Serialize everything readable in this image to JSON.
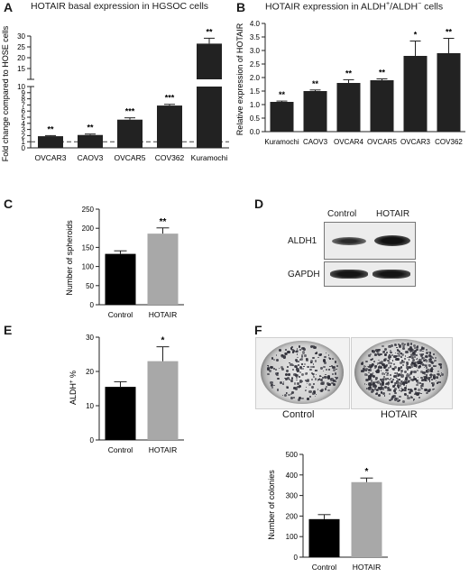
{
  "panels": {
    "A": {
      "letter": "A",
      "title": "HOTAIR basal expression in HGSOC cells",
      "ylabel": "Fold change compared to HOSE cells",
      "dashed_reference": 1,
      "lower_ticks": [
        "0",
        "1",
        "2",
        "3",
        "4",
        "5",
        "6",
        "7",
        "8",
        "9",
        "10"
      ],
      "upper_ticks": [
        "15",
        "20",
        "25",
        "30"
      ]
    },
    "B": {
      "letter": "B",
      "title": "HOTAIR expression in ALDH",
      "title_sup1": "+",
      "title_mid": "/ALDH",
      "title_sup2": "−",
      "title_end": "cells",
      "ylabel": "Relative expression of HOTAIR",
      "ticks": [
        "0.0",
        "0.5",
        "1.0",
        "1.5",
        "2.0",
        "2.5",
        "3.0",
        "3.5",
        "4.0"
      ]
    },
    "C": {
      "letter": "C",
      "ylabel": "Number of spheroids",
      "ticks": [
        "0",
        "50",
        "100",
        "150",
        "200",
        "250"
      ]
    },
    "D": {
      "letter": "D",
      "col_control": "Control",
      "col_hotair": "HOTAIR",
      "row_aldh1": "ALDH1",
      "row_gapdh": "GAPDH"
    },
    "E": {
      "letter": "E",
      "ylabel": "ALDH",
      "ylabel_sup": "+",
      "ylabel_end": " %",
      "ticks": [
        "0",
        "10",
        "20",
        "30"
      ]
    },
    "F": {
      "letter": "F",
      "plate_control": "Control",
      "plate_hotair": "HOTAIR",
      "ylabel": "Number of colonies",
      "ticks": [
        "0",
        "100",
        "200",
        "300",
        "400",
        "500"
      ]
    }
  },
  "chart_data": [
    {
      "id": "A",
      "type": "bar",
      "title": "HOTAIR basal expression in HGSOC cells",
      "ylabel": "Fold change compared to HOSE cells",
      "broken_axis": true,
      "ylim_lower": [
        0,
        10
      ],
      "ylim_upper": [
        10,
        30
      ],
      "categories": [
        "OVCAR3",
        "CAOV3",
        "OVCAR5",
        "COV362",
        "Kuramochi"
      ],
      "values": [
        1.9,
        2.1,
        4.6,
        6.9,
        26.5
      ],
      "errors": [
        0.1,
        0.15,
        0.3,
        0.2,
        2.5
      ],
      "significance": [
        "**",
        "**",
        "***",
        "***",
        "**"
      ]
    },
    {
      "id": "B",
      "type": "bar",
      "ylabel": "Relative expression of HOTAIR",
      "ylim": [
        0,
        4
      ],
      "categories": [
        "Kuramochi",
        "CAOV3",
        "OVCAR4",
        "OVCAR5",
        "OVCAR3",
        "COV362"
      ],
      "values": [
        1.1,
        1.5,
        1.8,
        1.9,
        2.8,
        2.9
      ],
      "errors": [
        0.03,
        0.04,
        0.12,
        0.05,
        0.55,
        0.55
      ],
      "significance": [
        "**",
        "**",
        "**",
        "**",
        "*",
        "**"
      ]
    },
    {
      "id": "C",
      "type": "bar",
      "ylabel": "Number of spheroids",
      "ylim": [
        0,
        250
      ],
      "categories": [
        "Control",
        "HOTAIR"
      ],
      "values": [
        133,
        186
      ],
      "errors": [
        8,
        15
      ],
      "colors": [
        "#000000",
        "#a8a8a8"
      ],
      "significance": [
        "",
        "**"
      ]
    },
    {
      "id": "E",
      "type": "bar",
      "ylabel": "ALDH+ %",
      "ylim": [
        0,
        30
      ],
      "categories": [
        "Control",
        "HOTAIR"
      ],
      "values": [
        15.5,
        23
      ],
      "errors": [
        1.5,
        4.2
      ],
      "colors": [
        "#000000",
        "#a8a8a8"
      ],
      "significance": [
        "",
        "*"
      ]
    },
    {
      "id": "F",
      "type": "bar",
      "ylabel": "Number of colonies",
      "ylim": [
        0,
        500
      ],
      "categories": [
        "Control",
        "HOTAIR"
      ],
      "values": [
        185,
        365
      ],
      "errors": [
        22,
        20
      ],
      "colors": [
        "#000000",
        "#a8a8a8"
      ],
      "significance": [
        "",
        "*"
      ]
    }
  ]
}
